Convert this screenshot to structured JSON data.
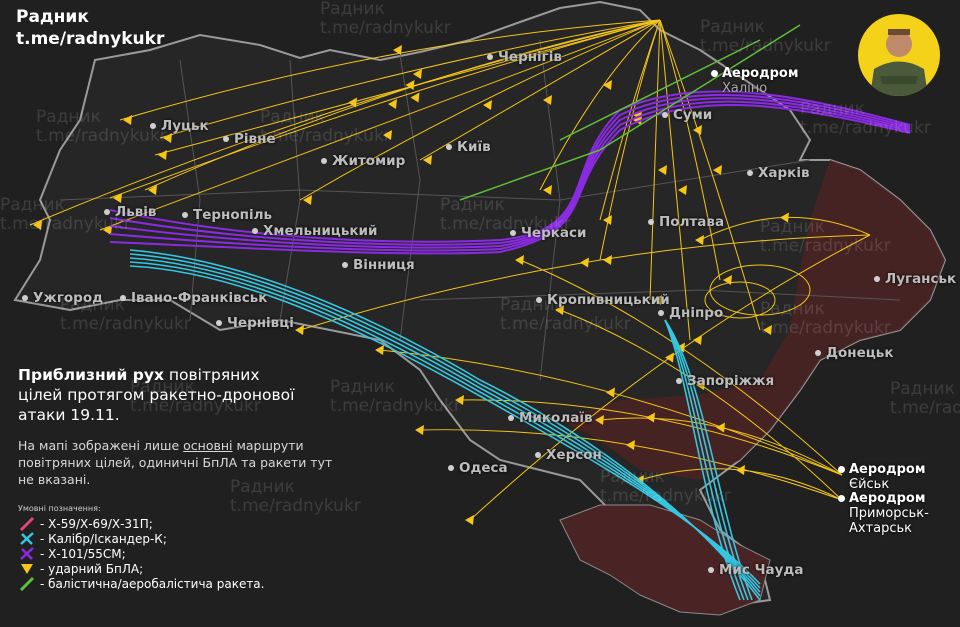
{
  "brand": {
    "name": "Радник",
    "channel": "t.me/radnykukr"
  },
  "watermark": {
    "line1": "Радник",
    "line2": "t.me/radnykukr"
  },
  "title": {
    "bold": "Приблизний рух",
    "rest1": " повітряних",
    "line2": "цілей протягом ракетно-дронової",
    "line3": "атаки 19.11."
  },
  "note": {
    "pre": "На мапі зображені лише ",
    "underlined": "основні",
    "post": " маршрути повітряних цілей, одиничні БпЛА та ракети тут не вказані."
  },
  "legend": {
    "caption": "Умовні позначення:",
    "items": [
      {
        "label": "- Х-59/Х-69/Х-31П;",
        "color": "#e0457b",
        "icon": "missile-icon"
      },
      {
        "label": "- Калібр/Іскандер-К;",
        "color": "#35c6e0",
        "icon": "cruise-missile-icon"
      },
      {
        "label": "- Х-101/55СМ;",
        "color": "#8a2be2",
        "icon": "cruise-missile-icon"
      },
      {
        "label": "- ударний БпЛА;",
        "color": "#f5c518",
        "icon": "drone-icon"
      },
      {
        "label": "- балістична/аеробалістича ракета.",
        "color": "#5fbf3a",
        "icon": "ballistic-missile-icon"
      }
    ]
  },
  "cities": [
    {
      "name": "Луцьк"
    },
    {
      "name": "Рівне"
    },
    {
      "name": "Житомир"
    },
    {
      "name": "Київ"
    },
    {
      "name": "Чернігів"
    },
    {
      "name": "Суми"
    },
    {
      "name": "Харків"
    },
    {
      "name": "Полтава"
    },
    {
      "name": "Черкаси"
    },
    {
      "name": "Львів"
    },
    {
      "name": "Тернопіль"
    },
    {
      "name": "Хмельницький"
    },
    {
      "name": "Вінниця"
    },
    {
      "name": "Ужгород"
    },
    {
      "name": "Івано-Франківськ"
    },
    {
      "name": "Чернівці"
    },
    {
      "name": "Кропивницький"
    },
    {
      "name": "Дніпро"
    },
    {
      "name": "Запоріжжя"
    },
    {
      "name": "Донецьк"
    },
    {
      "name": "Луганськ"
    },
    {
      "name": "Миколаїв"
    },
    {
      "name": "Херсон"
    },
    {
      "name": "Одеса"
    },
    {
      "name": "Мис Чауда"
    }
  ],
  "airfields": [
    {
      "title": "Аеродром",
      "name": "Халіно"
    },
    {
      "title": "Аеродром",
      "name": "Єйськ"
    },
    {
      "title": "Аеродром",
      "name": "Приморськ-Ахтарськ"
    }
  ],
  "colors": {
    "occupied": "#4a2424",
    "border": "#9a9a9a",
    "background": "#202020",
    "avatar": "#f5d21a"
  }
}
